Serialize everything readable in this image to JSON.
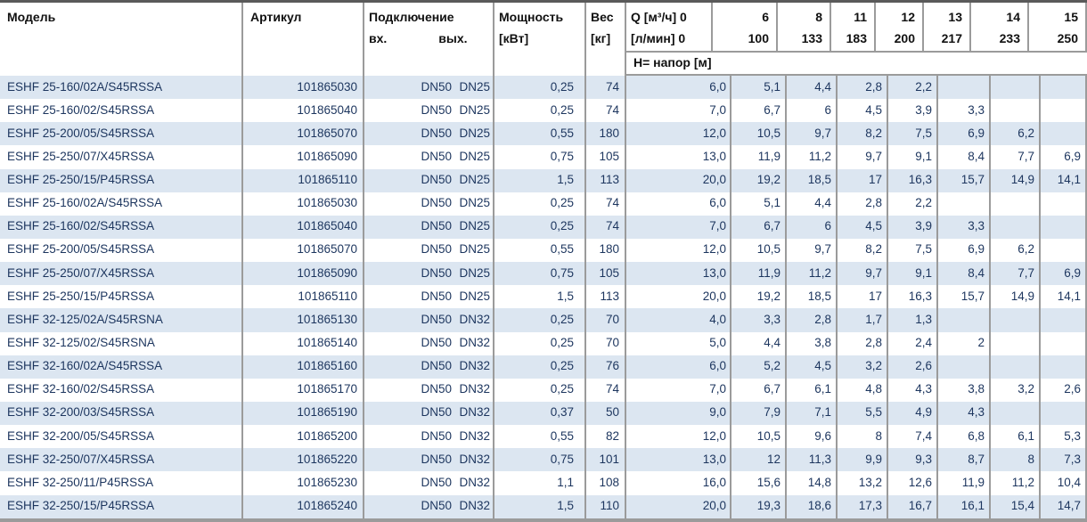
{
  "table": {
    "header": {
      "model": "Модель",
      "article": "Артикул",
      "connection": "Подключение",
      "conn_in": "вх.",
      "conn_out": "вых.",
      "power_line1": "Мощность",
      "power_line2": "[кВт]",
      "weight_line1": "Вес",
      "weight_line2": "[кг]",
      "q_line1": "Q [м³/ч] 0",
      "q_line2": "[л/мин] 0",
      "head_row_label": "Н= напор [м]",
      "q_columns": [
        {
          "m3h": "6",
          "lmin": "100"
        },
        {
          "m3h": "8",
          "lmin": "133"
        },
        {
          "m3h": "11",
          "lmin": "183"
        },
        {
          "m3h": "12",
          "lmin": "200"
        },
        {
          "m3h": "13",
          "lmin": "217"
        },
        {
          "m3h": "14",
          "lmin": "233"
        },
        {
          "m3h": "15",
          "lmin": "250"
        }
      ]
    },
    "colors": {
      "row_alt": "#dce6f1",
      "border": "#9b9b9b",
      "top_bar": "#5a5a5a",
      "data_text": "#1c355e",
      "header_text": "#111111"
    },
    "rows": [
      {
        "model": "ESHF 25-160/02A/S45RSSA",
        "article": "101865030",
        "conn_in": "DN50",
        "conn_out": "DN25",
        "power": "0,25",
        "weight": "74",
        "h": [
          "6,0",
          "5,1",
          "4,4",
          "2,8",
          "2,2",
          "",
          "",
          ""
        ]
      },
      {
        "model": "ESHF 25-160/02/S45RSSA",
        "article": "101865040",
        "conn_in": "DN50",
        "conn_out": "DN25",
        "power": "0,25",
        "weight": "74",
        "h": [
          "7,0",
          "6,7",
          "6",
          "4,5",
          "3,9",
          "3,3",
          "",
          ""
        ]
      },
      {
        "model": "ESHF 25-200/05/S45RSSA",
        "article": "101865070",
        "conn_in": "DN50",
        "conn_out": "DN25",
        "power": "0,55",
        "weight": "180",
        "h": [
          "12,0",
          "10,5",
          "9,7",
          "8,2",
          "7,5",
          "6,9",
          "6,2",
          ""
        ]
      },
      {
        "model": "ESHF 25-250/07/X45RSSA",
        "article": "101865090",
        "conn_in": "DN50",
        "conn_out": "DN25",
        "power": "0,75",
        "weight": "105",
        "h": [
          "13,0",
          "11,9",
          "11,2",
          "9,7",
          "9,1",
          "8,4",
          "7,7",
          "6,9"
        ]
      },
      {
        "model": "ESHF 25-250/15/P45RSSA",
        "article": "101865110",
        "conn_in": "DN50",
        "conn_out": "DN25",
        "power": "1,5",
        "weight": "113",
        "h": [
          "20,0",
          "19,2",
          "18,5",
          "17",
          "16,3",
          "15,7",
          "14,9",
          "14,1"
        ]
      },
      {
        "model": "ESHF 25-160/02A/S45RSSA",
        "article": "101865030",
        "conn_in": "DN50",
        "conn_out": "DN25",
        "power": "0,25",
        "weight": "74",
        "h": [
          "6,0",
          "5,1",
          "4,4",
          "2,8",
          "2,2",
          "",
          "",
          ""
        ]
      },
      {
        "model": "ESHF 25-160/02/S45RSSA",
        "article": "101865040",
        "conn_in": "DN50",
        "conn_out": "DN25",
        "power": "0,25",
        "weight": "74",
        "h": [
          "7,0",
          "6,7",
          "6",
          "4,5",
          "3,9",
          "3,3",
          "",
          ""
        ]
      },
      {
        "model": "ESHF 25-200/05/S45RSSA",
        "article": "101865070",
        "conn_in": "DN50",
        "conn_out": "DN25",
        "power": "0,55",
        "weight": "180",
        "h": [
          "12,0",
          "10,5",
          "9,7",
          "8,2",
          "7,5",
          "6,9",
          "6,2",
          ""
        ]
      },
      {
        "model": "ESHF 25-250/07/X45RSSA",
        "article": "101865090",
        "conn_in": "DN50",
        "conn_out": "DN25",
        "power": "0,75",
        "weight": "105",
        "h": [
          "13,0",
          "11,9",
          "11,2",
          "9,7",
          "9,1",
          "8,4",
          "7,7",
          "6,9"
        ]
      },
      {
        "model": "ESHF 25-250/15/P45RSSA",
        "article": "101865110",
        "conn_in": "DN50",
        "conn_out": "DN25",
        "power": "1,5",
        "weight": "113",
        "h": [
          "20,0",
          "19,2",
          "18,5",
          "17",
          "16,3",
          "15,7",
          "14,9",
          "14,1"
        ]
      },
      {
        "model": "ESHF 32-125/02A/S45RSNA",
        "article": "101865130",
        "conn_in": "DN50",
        "conn_out": "DN32",
        "power": "0,25",
        "weight": "70",
        "h": [
          "4,0",
          "3,3",
          "2,8",
          "1,7",
          "1,3",
          "",
          "",
          ""
        ]
      },
      {
        "model": "ESHF 32-125/02/S45RSNA",
        "article": "101865140",
        "conn_in": "DN50",
        "conn_out": "DN32",
        "power": "0,25",
        "weight": "70",
        "h": [
          "5,0",
          "4,4",
          "3,8",
          "2,8",
          "2,4",
          "2",
          "",
          ""
        ]
      },
      {
        "model": "ESHF 32-160/02A/S45RSSA",
        "article": "101865160",
        "conn_in": "DN50",
        "conn_out": "DN32",
        "power": "0,25",
        "weight": "76",
        "h": [
          "6,0",
          "5,2",
          "4,5",
          "3,2",
          "2,6",
          "",
          "",
          ""
        ]
      },
      {
        "model": "ESHF 32-160/02/S45RSSA",
        "article": "101865170",
        "conn_in": "DN50",
        "conn_out": "DN32",
        "power": "0,25",
        "weight": "74",
        "h": [
          "7,0",
          "6,7",
          "6,1",
          "4,8",
          "4,3",
          "3,8",
          "3,2",
          "2,6"
        ]
      },
      {
        "model": "ESHF 32-200/03/S45RSSA",
        "article": "101865190",
        "conn_in": "DN50",
        "conn_out": "DN32",
        "power": "0,37",
        "weight": "50",
        "h": [
          "9,0",
          "7,9",
          "7,1",
          "5,5",
          "4,9",
          "4,3",
          "",
          ""
        ]
      },
      {
        "model": "ESHF 32-200/05/S45RSSA",
        "article": "101865200",
        "conn_in": "DN50",
        "conn_out": "DN32",
        "power": "0,55",
        "weight": "82",
        "h": [
          "12,0",
          "10,5",
          "9,6",
          "8",
          "7,4",
          "6,8",
          "6,1",
          "5,3"
        ]
      },
      {
        "model": "ESHF 32-250/07/X45RSSA",
        "article": "101865220",
        "conn_in": "DN50",
        "conn_out": "DN32",
        "power": "0,75",
        "weight": "101",
        "h": [
          "13,0",
          "12",
          "11,3",
          "9,9",
          "9,3",
          "8,7",
          "8",
          "7,3"
        ]
      },
      {
        "model": "ESHF 32-250/11/P45RSSA",
        "article": "101865230",
        "conn_in": "DN50",
        "conn_out": "DN32",
        "power": "1,1",
        "weight": "108",
        "h": [
          "16,0",
          "15,6",
          "14,8",
          "13,2",
          "12,6",
          "11,9",
          "11,2",
          "10,4"
        ]
      },
      {
        "model": "ESHF 32-250/15/P45RSSA",
        "article": "101865240",
        "conn_in": "DN50",
        "conn_out": "DN32",
        "power": "1,5",
        "weight": "110",
        "h": [
          "20,0",
          "19,3",
          "18,6",
          "17,3",
          "16,7",
          "16,1",
          "15,4",
          "14,7"
        ]
      }
    ]
  }
}
